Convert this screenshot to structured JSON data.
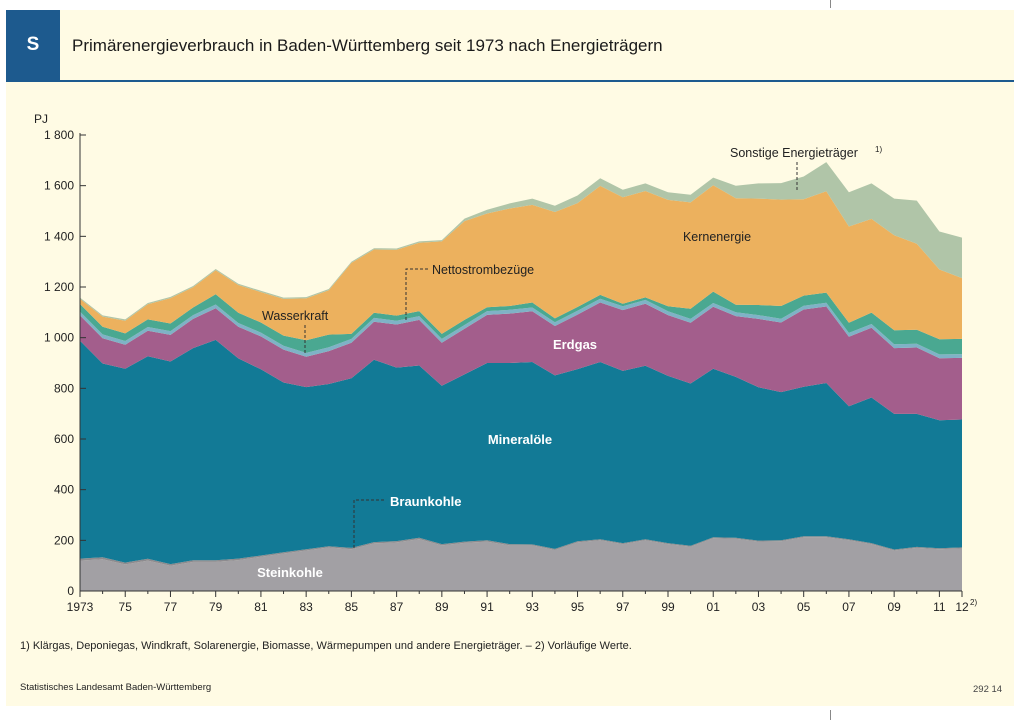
{
  "header": {
    "badge": "S",
    "title": "Primärenergieverbrauch in Baden-Württemberg seit 1973 nach Energieträgern"
  },
  "footer": {
    "footnote": "1) Klärgas, Deponiegas, Windkraft, Solarenergie, Biomasse, Wärmepumpen und andere Energieträger. – 2) Vorläufige Werte.",
    "source": "Statistisches Landesamt Baden-Württemberg",
    "code": "292 14"
  },
  "chart_data": {
    "type": "area",
    "stacked": true,
    "title": "Primärenergieverbrauch in Baden-Württemberg seit 1973 nach Energieträgern",
    "ylabel": "PJ",
    "xlabel": "",
    "ylim": [
      0,
      1800
    ],
    "yticks": [
      0,
      200,
      400,
      600,
      800,
      1000,
      1200,
      1400,
      1600,
      1800
    ],
    "ytick_labels": [
      "0",
      "200",
      "400",
      "600",
      "800",
      "1 000",
      "1 200",
      "1 400",
      "1 600",
      "1 800"
    ],
    "xlim": [
      1973,
      2012
    ],
    "xticks": [
      1973,
      1975,
      1977,
      1979,
      1981,
      1983,
      1985,
      1987,
      1989,
      1991,
      1993,
      1995,
      1997,
      1999,
      2001,
      2003,
      2005,
      2007,
      2009,
      2011,
      2012
    ],
    "xtick_labels": [
      "1973",
      "75",
      "77",
      "79",
      "81",
      "83",
      "85",
      "87",
      "89",
      "91",
      "93",
      "95",
      "97",
      "99",
      "01",
      "03",
      "05",
      "07",
      "09",
      "11",
      "12"
    ],
    "xtick_sup": {
      "12": "2)"
    },
    "x": [
      1973,
      1974,
      1975,
      1976,
      1977,
      1978,
      1979,
      1980,
      1981,
      1982,
      1983,
      1984,
      1985,
      1986,
      1987,
      1988,
      1989,
      1990,
      1991,
      1992,
      1993,
      1994,
      1995,
      1996,
      1997,
      1998,
      1999,
      2000,
      2001,
      2002,
      2003,
      2004,
      2005,
      2006,
      2007,
      2008,
      2009,
      2010,
      2011,
      2012
    ],
    "series": [
      {
        "name": "Steinkohle",
        "color": "#a2a0a4",
        "values": [
          120,
          125,
          105,
          120,
          100,
          115,
          115,
          122,
          135,
          148,
          160,
          172,
          165,
          188,
          192,
          205,
          180,
          190,
          195,
          180,
          180,
          162,
          192,
          200,
          185,
          200,
          185,
          175,
          208,
          206,
          195,
          196,
          212,
          212,
          200,
          185,
          160,
          170,
          165,
          168
        ]
      },
      {
        "name": "Braunkohle",
        "color": "#8d8b8f",
        "values": [
          8,
          8,
          7,
          7,
          6,
          6,
          6,
          6,
          5,
          5,
          5,
          5,
          5,
          5,
          5,
          5,
          5,
          5,
          5,
          5,
          4,
          4,
          4,
          4,
          4,
          4,
          4,
          4,
          4,
          4,
          4,
          4,
          4,
          4,
          4,
          4,
          4,
          4,
          4,
          4
        ]
      },
      {
        "name": "Mineralöle",
        "color": "#127a96",
        "values": [
          860,
          765,
          765,
          800,
          800,
          838,
          870,
          790,
          735,
          670,
          640,
          640,
          670,
          720,
          685,
          680,
          625,
          660,
          700,
          715,
          720,
          685,
          680,
          700,
          680,
          685,
          660,
          640,
          665,
          635,
          605,
          585,
          590,
          605,
          525,
          575,
          535,
          525,
          505,
          505
        ]
      },
      {
        "name": "Erdgas",
        "color": "#a35e8c",
        "values": [
          100,
          100,
          95,
          100,
          105,
          115,
          125,
          125,
          130,
          130,
          120,
          130,
          140,
          150,
          170,
          180,
          170,
          180,
          190,
          195,
          200,
          195,
          215,
          235,
          240,
          245,
          240,
          240,
          245,
          240,
          270,
          275,
          305,
          302,
          275,
          275,
          260,
          262,
          245,
          243
        ]
      },
      {
        "name": "Wasserkraft",
        "color": "#7fb2c6",
        "values": [
          15,
          15,
          15,
          15,
          15,
          15,
          15,
          15,
          15,
          15,
          15,
          15,
          15,
          15,
          15,
          15,
          15,
          15,
          15,
          15,
          15,
          15,
          15,
          15,
          15,
          15,
          15,
          15,
          15,
          15,
          15,
          15,
          15,
          15,
          15,
          15,
          15,
          15,
          15,
          15
        ]
      },
      {
        "name": "Nettostrombezüge",
        "color": "#4aa891",
        "values": [
          30,
          30,
          30,
          30,
          30,
          30,
          40,
          40,
          40,
          40,
          50,
          50,
          20,
          20,
          20,
          20,
          20,
          20,
          15,
          15,
          20,
          15,
          15,
          15,
          10,
          10,
          20,
          40,
          45,
          30,
          40,
          50,
          40,
          40,
          40,
          45,
          55,
          55,
          60,
          60
        ]
      },
      {
        "name": "Kernenergie",
        "color": "#ecb15e",
        "values": [
          20,
          40,
          50,
          60,
          100,
          80,
          95,
          110,
          120,
          145,
          165,
          175,
          280,
          250,
          260,
          270,
          365,
          390,
          370,
          385,
          385,
          420,
          410,
          430,
          420,
          420,
          420,
          420,
          420,
          420,
          420,
          420,
          380,
          400,
          380,
          370,
          375,
          340,
          275,
          240
        ]
      },
      {
        "name": "Sonstige Energieträger",
        "color": "#b0c5a8",
        "values": [
          5,
          5,
          5,
          5,
          5,
          5,
          5,
          5,
          5,
          5,
          5,
          5,
          5,
          5,
          5,
          5,
          5,
          10,
          15,
          20,
          25,
          25,
          30,
          30,
          30,
          30,
          30,
          30,
          30,
          50,
          60,
          65,
          90,
          115,
          135,
          140,
          145,
          170,
          150,
          160
        ]
      }
    ],
    "annotations": [
      {
        "text": "Steinkohle",
        "bold": true,
        "color": "#ffffff"
      },
      {
        "text": "Braunkohle",
        "bold": true,
        "color": "#ffffff"
      },
      {
        "text": "Mineralöle",
        "bold": true,
        "color": "#ffffff"
      },
      {
        "text": "Erdgas",
        "bold": true,
        "color": "#ffffff"
      },
      {
        "text": "Wasserkraft",
        "bold": false,
        "color": "#222222"
      },
      {
        "text": "Nettostrombezüge",
        "bold": false,
        "color": "#222222"
      },
      {
        "text": "Kernenergie",
        "bold": false,
        "color": "#222222"
      },
      {
        "text": "Sonstige Energieträger",
        "sup": "1)",
        "bold": false,
        "color": "#222222"
      }
    ]
  }
}
